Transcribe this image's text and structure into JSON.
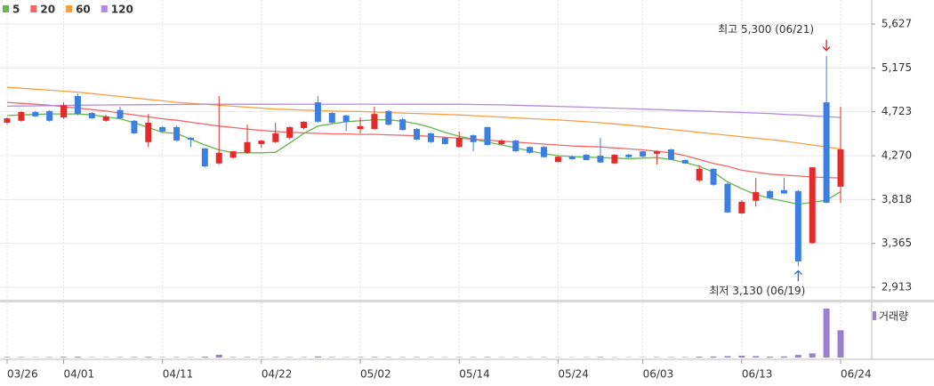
{
  "chart_data": {
    "type": "candlestick",
    "categories": [
      "03/26",
      null,
      null,
      null,
      "04/01",
      null,
      null,
      null,
      null,
      null,
      null,
      "04/11",
      null,
      null,
      null,
      null,
      null,
      null,
      "04/22",
      null,
      null,
      null,
      null,
      null,
      null,
      "05/02",
      null,
      null,
      null,
      null,
      null,
      null,
      "05/14",
      null,
      null,
      null,
      null,
      null,
      null,
      "05/24",
      null,
      null,
      null,
      null,
      null,
      "06/03",
      null,
      null,
      null,
      null,
      null,
      null,
      "06/13",
      null,
      null,
      null,
      null,
      null,
      null,
      "06/24"
    ],
    "open": [
      4610,
      4630,
      4720,
      4730,
      4665,
      4885,
      4710,
      4630,
      4740,
      4630,
      4410,
      4565,
      4565,
      4455,
      4345,
      4190,
      4250,
      4300,
      4390,
      4410,
      4455,
      4555,
      4820,
      4710,
      4685,
      4545,
      4545,
      4730,
      4645,
      4545,
      4500,
      4455,
      4360,
      4480,
      4565,
      4390,
      4425,
      4360,
      4360,
      4205,
      4260,
      4280,
      4270,
      4190,
      4280,
      4315,
      4290,
      4335,
      4225,
      4015,
      4135,
      3980,
      3675,
      3805,
      3905,
      3915,
      3905,
      3370,
      4820,
      3950
    ],
    "high": [
      4665,
      4730,
      4730,
      4740,
      4820,
      4910,
      4720,
      4690,
      4775,
      4640,
      4700,
      4575,
      4580,
      4460,
      4350,
      4885,
      4320,
      4590,
      4430,
      4610,
      4570,
      4625,
      4885,
      4720,
      4690,
      4665,
      4775,
      4740,
      4660,
      4555,
      4510,
      4460,
      4520,
      4490,
      4570,
      4440,
      4435,
      4365,
      4370,
      4265,
      4270,
      4285,
      4455,
      4285,
      4290,
      4320,
      4325,
      4340,
      4230,
      4170,
      4140,
      3990,
      3810,
      4040,
      3915,
      4045,
      3915,
      4150,
      5300,
      4775
    ],
    "low": [
      4595,
      4620,
      4670,
      4620,
      4650,
      4685,
      4650,
      4620,
      4650,
      4495,
      4360,
      4510,
      4420,
      4360,
      4150,
      4180,
      4240,
      4290,
      4350,
      4400,
      4440,
      4540,
      4610,
      4600,
      4525,
      4500,
      4540,
      4580,
      4530,
      4430,
      4400,
      4385,
      4355,
      4315,
      4375,
      4380,
      4310,
      4290,
      4250,
      4200,
      4230,
      4220,
      4195,
      4185,
      4250,
      4255,
      4180,
      4225,
      4185,
      4000,
      3960,
      3680,
      3670,
      3745,
      3830,
      3875,
      3130,
      3360,
      3780,
      3785
    ],
    "close": [
      4655,
      4720,
      4675,
      4630,
      4790,
      4700,
      4655,
      4675,
      4655,
      4500,
      4610,
      4520,
      4425,
      4435,
      4160,
      4300,
      4315,
      4410,
      4425,
      4500,
      4565,
      4620,
      4620,
      4610,
      4620,
      4575,
      4700,
      4590,
      4535,
      4435,
      4410,
      4390,
      4455,
      4410,
      4380,
      4425,
      4315,
      4300,
      4255,
      4260,
      4235,
      4225,
      4200,
      4280,
      4255,
      4260,
      4315,
      4230,
      4190,
      4135,
      3970,
      3685,
      3795,
      3895,
      3835,
      3880,
      3180,
      4150,
      3785,
      4335
    ],
    "up_color": "#e52a2a",
    "down_color": "#3b7fe0",
    "moving_averages": [
      {
        "name": "5",
        "color": "#62b84a",
        "values": [
          4683,
          4690,
          4695,
          4700,
          4700,
          4700,
          4690,
          4670,
          4650,
          4610,
          4560,
          4510,
          4500,
          4440,
          4380,
          4330,
          4300,
          4300,
          4300,
          4305,
          4400,
          4500,
          4575,
          4600,
          4620,
          4630,
          4640,
          4640,
          4625,
          4600,
          4560,
          4510,
          4470,
          4440,
          4410,
          4380,
          4350,
          4320,
          4290,
          4270,
          4260,
          4255,
          4250,
          4245,
          4240,
          4245,
          4250,
          4230,
          4200,
          4160,
          4100,
          4000,
          3930,
          3870,
          3830,
          3800,
          3770,
          3790,
          3810,
          3900
        ]
      },
      {
        "name": "20",
        "color": "#f26666",
        "values": [
          4820,
          4810,
          4800,
          4790,
          4775,
          4760,
          4745,
          4730,
          4710,
          4690,
          4670,
          4650,
          4635,
          4615,
          4595,
          4575,
          4560,
          4545,
          4530,
          4520,
          4510,
          4505,
          4500,
          4495,
          4495,
          4490,
          4490,
          4485,
          4480,
          4475,
          4470,
          4460,
          4450,
          4440,
          4430,
          4420,
          4410,
          4400,
          4390,
          4380,
          4370,
          4365,
          4360,
          4350,
          4340,
          4330,
          4315,
          4300,
          4270,
          4230,
          4190,
          4160,
          4120,
          4100,
          4080,
          4070,
          4060,
          4050,
          4045,
          4040
        ]
      },
      {
        "name": "60",
        "color": "#f5a040",
        "values": [
          4975,
          4965,
          4955,
          4945,
          4935,
          4925,
          4910,
          4895,
          4880,
          4865,
          4850,
          4835,
          4820,
          4810,
          4800,
          4790,
          4780,
          4770,
          4760,
          4750,
          4745,
          4740,
          4735,
          4730,
          4728,
          4725,
          4720,
          4715,
          4710,
          4705,
          4700,
          4695,
          4690,
          4683,
          4675,
          4668,
          4660,
          4652,
          4645,
          4638,
          4630,
          4620,
          4610,
          4598,
          4585,
          4570,
          4555,
          4540,
          4525,
          4510,
          4495,
          4480,
          4465,
          4450,
          4435,
          4420,
          4400,
          4380,
          4360,
          4340
        ]
      },
      {
        "name": "120",
        "color": "#b48ae0",
        "values": [
          4780,
          4782,
          4784,
          4786,
          4788,
          4790,
          4792,
          4793,
          4794,
          4795,
          4796,
          4797,
          4798,
          4799,
          4800,
          4800,
          4800,
          4800,
          4800,
          4800,
          4801,
          4801,
          4801,
          4801,
          4801,
          4801,
          4801,
          4801,
          4800,
          4800,
          4800,
          4800,
          4800,
          4798,
          4796,
          4794,
          4790,
          4786,
          4782,
          4778,
          4774,
          4770,
          4765,
          4760,
          4755,
          4750,
          4745,
          4740,
          4735,
          4730,
          4725,
          4720,
          4715,
          4710,
          4705,
          4695,
          4690,
          4680,
          4672,
          4665
        ]
      }
    ],
    "volume": {
      "name": "거래량",
      "color": "#9b7fd0",
      "values": [
        60000,
        50000,
        40000,
        45000,
        70000,
        90000,
        40000,
        35000,
        45000,
        60000,
        80000,
        40000,
        50000,
        40000,
        90000,
        300000,
        50000,
        60000,
        40000,
        50000,
        45000,
        40000,
        110000,
        50000,
        40000,
        45000,
        60000,
        50000,
        40000,
        45000,
        40000,
        35000,
        40000,
        45000,
        60000,
        35000,
        40000,
        35000,
        40000,
        30000,
        30000,
        30000,
        60000,
        35000,
        30000,
        35000,
        40000,
        45000,
        40000,
        90000,
        110000,
        150000,
        200000,
        150000,
        90000,
        120000,
        280000,
        450000,
        5200000,
        2900000
      ]
    },
    "ylim": [
      2785,
      5875
    ],
    "yticks": [
      {
        "value": 2913,
        "label": "2,913"
      },
      {
        "value": 3365,
        "label": "3,365"
      },
      {
        "value": 3818,
        "label": "3,818"
      },
      {
        "value": 4270,
        "label": "4,270"
      },
      {
        "value": 4723,
        "label": "4,723"
      },
      {
        "value": 5175,
        "label": "5,175"
      },
      {
        "value": 5627,
        "label": "5,627"
      }
    ],
    "grid": true,
    "annotations": {
      "high": "최고 5,300 (06/21)",
      "low": "최저 3,130 (06/19)"
    }
  }
}
